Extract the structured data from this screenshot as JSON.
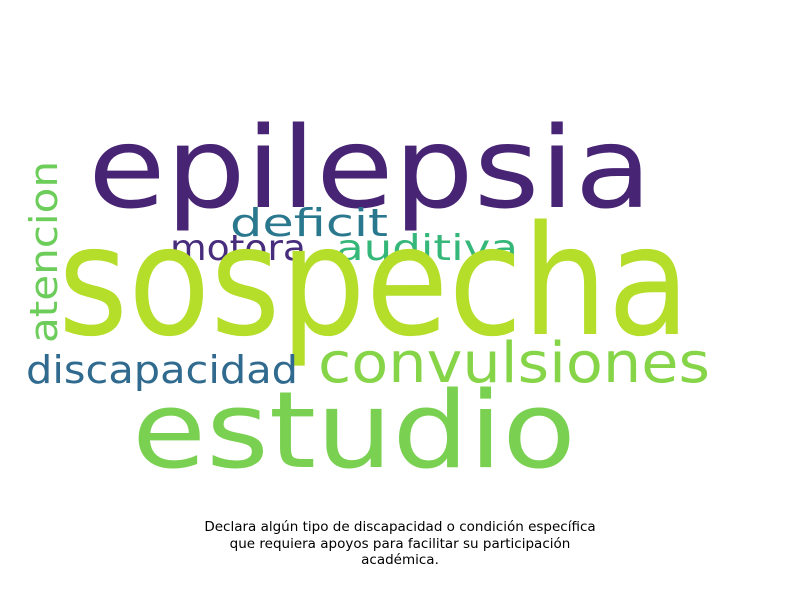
{
  "words": [
    {
      "text": "epilepsia",
      "color": "#482475"
    },
    {
      "text": "sospecha",
      "color": "#b5de2b"
    },
    {
      "text": "estudio",
      "color": "#7ad151"
    },
    {
      "text": "convulsiones",
      "color": "#86d549"
    },
    {
      "text": "discapacidad",
      "color": "#306a8e"
    },
    {
      "text": "deficit",
      "color": "#2a788e"
    },
    {
      "text": "motora",
      "color": "#472d7b"
    },
    {
      "text": "auditiva",
      "color": "#35b779"
    },
    {
      "text": "atencion",
      "color": "#6ccd5a"
    }
  ],
  "caption": {
    "line1": "Declara algún tipo de discapacidad o condición específica",
    "line2": "que requiera apoyos para facilitar su participación",
    "line3": "académica."
  }
}
